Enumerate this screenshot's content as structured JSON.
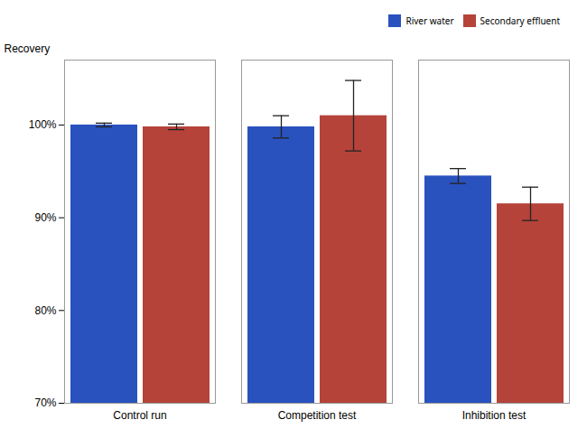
{
  "chart_data": {
    "type": "bar",
    "categories": [
      "Control run",
      "Competition test",
      "Inhibition test"
    ],
    "series": [
      {
        "name": "River water",
        "color": "#2a52be",
        "values": [
          100.0,
          99.8,
          94.5
        ],
        "errors": [
          0.2,
          1.2,
          0.8
        ]
      },
      {
        "name": "Secondary effluent",
        "color": "#b5433a",
        "values": [
          99.8,
          101.0,
          91.5
        ],
        "errors": [
          0.3,
          3.8,
          1.8
        ]
      }
    ],
    "ylabel": "Recovery",
    "ylim": [
      70,
      107
    ],
    "yticks": [
      {
        "value": 70,
        "label": "70%"
      },
      {
        "value": 80,
        "label": "80%"
      },
      {
        "value": 90,
        "label": "90%"
      },
      {
        "value": 100,
        "label": "100%"
      }
    ],
    "legend": "upper right",
    "grid": false
  }
}
